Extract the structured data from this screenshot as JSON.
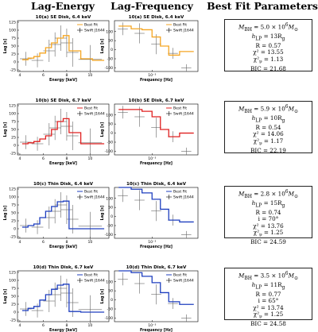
{
  "headers": {
    "lag_energy": "Lag-Energy",
    "lag_frequency": "Lag-Frequency",
    "best_fit": "Best Fit Parameters"
  },
  "legend": {
    "model": "Best Fit",
    "data": "Swift J1644"
  },
  "chart_data": [
    {
      "type": "line",
      "kind": "lag-energy",
      "title": "10(a) SE Disk, 6.4 keV",
      "xlabel": "Energy [keV]",
      "ylabel": "Lag [s]",
      "xlim": [
        3.8,
        11.6
      ],
      "ylim": [
        -30,
        130
      ],
      "xticks": [
        4,
        6,
        8,
        10
      ],
      "yticks": [
        -25,
        0,
        25,
        50,
        75,
        100,
        125
      ],
      "color": "#f5a623",
      "model": {
        "x": [
          4.2,
          4.7,
          5.2,
          5.7,
          6.2,
          6.7,
          7.2,
          7.7,
          8.2,
          9.2,
          10.2,
          11.2
        ],
        "y": [
          7,
          12,
          17,
          28,
          45,
          60,
          75,
          83,
          35,
          10,
          5,
          5
        ]
      },
      "data": [
        {
          "x": 4.5,
          "y": 10,
          "xerr": 0.5,
          "yerr": 22
        },
        {
          "x": 5.5,
          "y": 5,
          "xerr": 0.5,
          "yerr": 22
        },
        {
          "x": 6.5,
          "y": 35,
          "xerr": 0.5,
          "yerr": 35
        },
        {
          "x": 7.0,
          "y": 55,
          "xerr": 0.5,
          "yerr": 38
        },
        {
          "x": 7.5,
          "y": 75,
          "xerr": 0.5,
          "yerr": 40
        },
        {
          "x": 8.0,
          "y": 60,
          "xerr": 0.5,
          "yerr": 45
        },
        {
          "x": 8.5,
          "y": 30,
          "xerr": 0.5,
          "yerr": 45
        },
        {
          "x": 10.0,
          "y": 8,
          "xerr": 1.0,
          "yerr": 45
        }
      ]
    },
    {
      "type": "line",
      "kind": "lag-frequency",
      "title": "10(a) SE Disk, 6.4 keV",
      "xlabel": "Frequency [Hz]",
      "ylabel": "Lag [s]",
      "xlim": [
        0,
        1
      ],
      "ylim": [
        -120,
        160
      ],
      "xticks": [
        {
          "value": 0.45,
          "label": "10⁻³"
        }
      ],
      "yticks": [
        -100,
        -50,
        0,
        50,
        100
      ],
      "color": "#f5a623",
      "model": {
        "x": [
          0.05,
          0.2,
          0.33,
          0.45,
          0.55,
          0.65,
          0.78,
          0.9,
          0.95
        ],
        "y": [
          130,
          115,
          110,
          70,
          20,
          -30,
          -10,
          -10,
          -10
        ]
      },
      "data": [
        {
          "x": 0.1,
          "y": 115,
          "xerr": 0.06,
          "yerr": 35
        },
        {
          "x": 0.3,
          "y": 90,
          "xerr": 0.06,
          "yerr": 55
        },
        {
          "x": 0.5,
          "y": 30,
          "xerr": 0.06,
          "yerr": 55
        },
        {
          "x": 0.7,
          "y": -20,
          "xerr": 0.06,
          "yerr": 30
        },
        {
          "x": 0.86,
          "y": -100,
          "xerr": 0.06,
          "yerr": 20
        }
      ]
    },
    {
      "type": "line",
      "kind": "lag-energy",
      "title": "10(b) SE Disk, 6.7 keV",
      "xlabel": "Energy [keV]",
      "ylabel": "Lag [s]",
      "xlim": [
        3.8,
        11.6
      ],
      "ylim": [
        -30,
        130
      ],
      "xticks": [
        4,
        6,
        8,
        10
      ],
      "yticks": [
        -25,
        0,
        25,
        50,
        75,
        100,
        125
      ],
      "color": "#e02020",
      "model": {
        "x": [
          4.2,
          4.7,
          5.2,
          5.7,
          6.2,
          6.7,
          7.2,
          7.7,
          8.2,
          9.2,
          10.2,
          11.2
        ],
        "y": [
          5,
          8,
          12,
          20,
          30,
          50,
          75,
          84,
          40,
          5,
          5,
          5
        ]
      },
      "data": [
        {
          "x": 4.5,
          "y": 10,
          "xerr": 0.5,
          "yerr": 22
        },
        {
          "x": 5.5,
          "y": 5,
          "xerr": 0.5,
          "yerr": 22
        },
        {
          "x": 6.5,
          "y": 35,
          "xerr": 0.5,
          "yerr": 35
        },
        {
          "x": 7.0,
          "y": 55,
          "xerr": 0.5,
          "yerr": 38
        },
        {
          "x": 7.5,
          "y": 75,
          "xerr": 0.5,
          "yerr": 40
        },
        {
          "x": 8.0,
          "y": 60,
          "xerr": 0.5,
          "yerr": 45
        },
        {
          "x": 8.5,
          "y": 30,
          "xerr": 0.5,
          "yerr": 45
        },
        {
          "x": 10.0,
          "y": 8,
          "xerr": 1.0,
          "yerr": 45
        }
      ]
    },
    {
      "type": "line",
      "kind": "lag-frequency",
      "title": "10(b) SE Disk, 6.7 keV",
      "xlabel": "Frequency [Hz]",
      "ylabel": "Lag [s]",
      "xlim": [
        0,
        1
      ],
      "ylim": [
        -120,
        160
      ],
      "xticks": [
        {
          "value": 0.45,
          "label": "10⁻³"
        }
      ],
      "yticks": [
        -100,
        -50,
        0,
        50,
        100
      ],
      "color": "#e02020",
      "model": {
        "x": [
          0.05,
          0.2,
          0.33,
          0.45,
          0.55,
          0.65,
          0.78,
          0.9,
          0.95
        ],
        "y": [
          130,
          130,
          120,
          90,
          20,
          -20,
          0,
          0,
          0
        ]
      },
      "data": [
        {
          "x": 0.1,
          "y": 115,
          "xerr": 0.06,
          "yerr": 35
        },
        {
          "x": 0.3,
          "y": 90,
          "xerr": 0.06,
          "yerr": 55
        },
        {
          "x": 0.5,
          "y": 30,
          "xerr": 0.06,
          "yerr": 55
        },
        {
          "x": 0.7,
          "y": -20,
          "xerr": 0.06,
          "yerr": 30
        },
        {
          "x": 0.86,
          "y": -100,
          "xerr": 0.06,
          "yerr": 20
        }
      ]
    },
    {
      "type": "line",
      "kind": "lag-energy",
      "title": "10(c) Thin Disk, 6.4 keV",
      "xlabel": "Energy [keV]",
      "ylabel": "Lag [s]",
      "xlim": [
        3.8,
        11.6
      ],
      "ylim": [
        -30,
        130
      ],
      "xticks": [
        4,
        6,
        8,
        10
      ],
      "yticks": [
        -25,
        0,
        25,
        50,
        75,
        100,
        125
      ],
      "color": "#1f3fbf",
      "model": {
        "x": [
          4.2,
          4.7,
          5.2,
          5.7,
          6.2,
          6.7,
          7.2,
          7.7,
          8.2,
          9.2,
          10.2,
          11.2
        ],
        "y": [
          5,
          10,
          15,
          35,
          55,
          70,
          85,
          87,
          0,
          0,
          0,
          0
        ]
      },
      "data": [
        {
          "x": 4.5,
          "y": 10,
          "xerr": 0.5,
          "yerr": 22
        },
        {
          "x": 5.5,
          "y": 5,
          "xerr": 0.5,
          "yerr": 22
        },
        {
          "x": 6.5,
          "y": 35,
          "xerr": 0.5,
          "yerr": 35
        },
        {
          "x": 7.0,
          "y": 55,
          "xerr": 0.5,
          "yerr": 38
        },
        {
          "x": 7.5,
          "y": 75,
          "xerr": 0.5,
          "yerr": 40
        },
        {
          "x": 8.0,
          "y": 60,
          "xerr": 0.5,
          "yerr": 45
        },
        {
          "x": 8.5,
          "y": 30,
          "xerr": 0.5,
          "yerr": 45
        },
        {
          "x": 10.0,
          "y": 8,
          "xerr": 1.0,
          "yerr": 45
        }
      ]
    },
    {
      "type": "line",
      "kind": "lag-frequency",
      "title": "10(c) Thin Disk, 6.4 keV",
      "xlabel": "Frequency [Hz]",
      "ylabel": "Lag [s]",
      "xlim": [
        0,
        1
      ],
      "ylim": [
        -120,
        160
      ],
      "xticks": [
        {
          "value": 0.45,
          "label": "10⁻³"
        }
      ],
      "yticks": [
        -100,
        -50,
        0,
        50,
        100
      ],
      "color": "#1f3fbf",
      "model": {
        "x": [
          0.05,
          0.2,
          0.33,
          0.45,
          0.55,
          0.65,
          0.78,
          0.9,
          0.95
        ],
        "y": [
          160,
          150,
          130,
          95,
          40,
          -20,
          -30,
          -30,
          -30
        ]
      },
      "data": [
        {
          "x": 0.1,
          "y": 115,
          "xerr": 0.06,
          "yerr": 35
        },
        {
          "x": 0.3,
          "y": 90,
          "xerr": 0.06,
          "yerr": 55
        },
        {
          "x": 0.5,
          "y": 30,
          "xerr": 0.06,
          "yerr": 55
        },
        {
          "x": 0.7,
          "y": -20,
          "xerr": 0.06,
          "yerr": 30
        },
        {
          "x": 0.86,
          "y": -100,
          "xerr": 0.06,
          "yerr": 20
        }
      ]
    },
    {
      "type": "line",
      "kind": "lag-energy",
      "title": "10(d) Thin Disk, 6.7 keV",
      "xlabel": "Energy [keV]",
      "ylabel": "Lag [s]",
      "xlim": [
        3.8,
        11.6
      ],
      "ylim": [
        -30,
        130
      ],
      "xticks": [
        4,
        6,
        8,
        10
      ],
      "yticks": [
        -25,
        0,
        25,
        50,
        75,
        100,
        125
      ],
      "color": "#1f3fbf",
      "model": {
        "x": [
          4.2,
          4.7,
          5.2,
          5.7,
          6.2,
          6.7,
          7.2,
          7.7,
          8.2,
          9.2,
          10.2,
          11.2
        ],
        "y": [
          5,
          12,
          18,
          38,
          55,
          72,
          85,
          88,
          2,
          0,
          0,
          0
        ]
      },
      "data": [
        {
          "x": 4.5,
          "y": 10,
          "xerr": 0.5,
          "yerr": 22
        },
        {
          "x": 5.5,
          "y": 5,
          "xerr": 0.5,
          "yerr": 22
        },
        {
          "x": 6.5,
          "y": 35,
          "xerr": 0.5,
          "yerr": 35
        },
        {
          "x": 7.0,
          "y": 55,
          "xerr": 0.5,
          "yerr": 38
        },
        {
          "x": 7.5,
          "y": 75,
          "xerr": 0.5,
          "yerr": 40
        },
        {
          "x": 8.0,
          "y": 60,
          "xerr": 0.5,
          "yerr": 45
        },
        {
          "x": 8.5,
          "y": 30,
          "xerr": 0.5,
          "yerr": 45
        },
        {
          "x": 10.0,
          "y": 8,
          "xerr": 1.0,
          "yerr": 45
        }
      ]
    },
    {
      "type": "line",
      "kind": "lag-frequency",
      "title": "10(d) Thin Disk, 6.7 keV",
      "xlabel": "Frequency [Hz]",
      "ylabel": "Lag [s]",
      "xlim": [
        0,
        1
      ],
      "ylim": [
        -120,
        160
      ],
      "xticks": [
        {
          "value": 0.45,
          "label": "10⁻³"
        }
      ],
      "yticks": [
        -100,
        -50,
        0,
        50,
        100
      ],
      "color": "#1f3fbf",
      "model": {
        "x": [
          0.05,
          0.2,
          0.33,
          0.45,
          0.55,
          0.65,
          0.78,
          0.9,
          0.95
        ],
        "y": [
          160,
          150,
          130,
          95,
          40,
          -10,
          -25,
          -25,
          -25
        ]
      },
      "data": [
        {
          "x": 0.1,
          "y": 115,
          "xerr": 0.06,
          "yerr": 35
        },
        {
          "x": 0.3,
          "y": 90,
          "xerr": 0.06,
          "yerr": 55
        },
        {
          "x": 0.5,
          "y": 30,
          "xerr": 0.06,
          "yerr": 55
        },
        {
          "x": 0.7,
          "y": -20,
          "xerr": 0.06,
          "yerr": 30
        },
        {
          "x": 0.86,
          "y": -100,
          "xerr": 0.06,
          "yerr": 20
        }
      ]
    }
  ],
  "params": [
    {
      "mbh": "M",
      "mbh_sub": "BH",
      "mbh_val": " = 5.0 × 10",
      "mbh_exp": "6",
      "mbh_unit": "M",
      "mbh_unit_sub": "⊙",
      "hlp": "h",
      "hlp_sub": "LP",
      "hlp_val": " = 13R",
      "hlp_unit_sub": "g",
      "r": "R = 0.57",
      "chi2": "χ² = 13.55",
      "chi2nu_pre": "χ²",
      "chi2nu_sub": "ν",
      "chi2nu_val": " = 1.13",
      "bic": "BIC = 21.68"
    },
    {
      "mbh": "M",
      "mbh_sub": "BH",
      "mbh_val": " = 5.9 × 10",
      "mbh_exp": "6",
      "mbh_unit": "M",
      "mbh_unit_sub": "⊙",
      "hlp": "h",
      "hlp_sub": "LP",
      "hlp_val": " = 10R",
      "hlp_unit_sub": "g",
      "r": "R = 0.54",
      "chi2": "χ² = 14.06",
      "chi2nu_pre": "χ²",
      "chi2nu_sub": "ν",
      "chi2nu_val": " = 1.17",
      "bic": "BIC = 22.19"
    },
    {
      "mbh": "M",
      "mbh_sub": "BH",
      "mbh_val": " = 2.8 × 10",
      "mbh_exp": "6",
      "mbh_unit": "M",
      "mbh_unit_sub": "⊙",
      "hlp": "h",
      "hlp_sub": "LP",
      "hlp_val": " = 15R",
      "hlp_unit_sub": "g",
      "r": "R = 0.74",
      "inc": "i = 70°",
      "chi2": "χ² = 13.76",
      "chi2nu_pre": "χ²",
      "chi2nu_sub": "ν",
      "chi2nu_val": " = 1.25",
      "bic": "BIC = 24.59"
    },
    {
      "mbh": "M",
      "mbh_sub": "BH",
      "mbh_val": " = 3.5 × 10",
      "mbh_exp": "6",
      "mbh_unit": "M",
      "mbh_unit_sub": "⊙",
      "hlp": "h",
      "hlp_sub": "LP",
      "hlp_val": " = 11R",
      "hlp_unit_sub": "g",
      "r": "R = 0.77",
      "inc": "i = 65°",
      "chi2": "χ² = 13.74",
      "chi2nu_pre": "χ²",
      "chi2nu_sub": "ν",
      "chi2nu_val": " = 1.25",
      "bic": "BIC = 24.58"
    }
  ]
}
